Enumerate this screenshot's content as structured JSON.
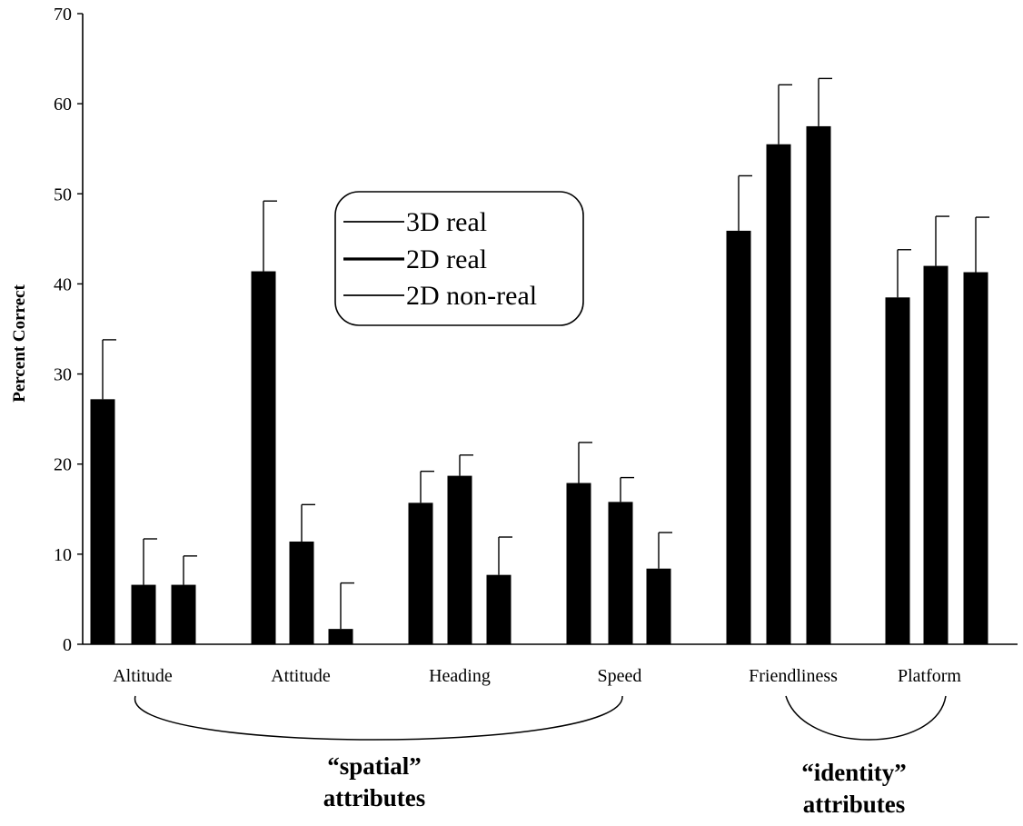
{
  "chart_data": {
    "type": "bar",
    "ylabel": "Percent Correct",
    "xlabel": "",
    "ylim": [
      0,
      70
    ],
    "yticks": [
      0,
      10,
      20,
      30,
      40,
      50,
      60,
      70
    ],
    "grid": false,
    "legend_placement": "top-center",
    "categories": [
      "Altitude",
      "Attitude",
      "Heading",
      "Speed",
      "Friendliness",
      "Platform"
    ],
    "series": [
      {
        "name": "3D real",
        "values": [
          27.2,
          41.4,
          15.7,
          17.9,
          45.9,
          38.5
        ],
        "error": [
          6.6,
          7.8,
          3.5,
          4.5,
          6.1,
          5.3
        ]
      },
      {
        "name": "2D real",
        "values": [
          6.6,
          11.4,
          18.7,
          15.8,
          55.5,
          42.0
        ],
        "error": [
          5.1,
          4.1,
          2.3,
          2.7,
          6.6,
          5.5
        ]
      },
      {
        "name": "2D non-real",
        "values": [
          6.6,
          1.7,
          7.7,
          8.4,
          57.5,
          41.3
        ],
        "error": [
          3.2,
          5.1,
          4.2,
          4.0,
          5.3,
          6.1
        ]
      }
    ],
    "groups": [
      {
        "line1": "“spatial”",
        "line2": "attributes",
        "from": 0,
        "to": 3
      },
      {
        "line1": "“identity”",
        "line2": "attributes",
        "from": 4,
        "to": 5
      }
    ],
    "bar_color": "#000000"
  }
}
